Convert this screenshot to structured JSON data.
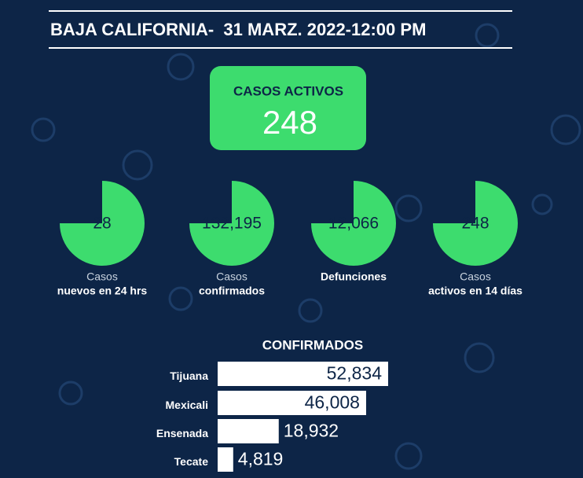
{
  "header": {
    "title": "BAJA CALIFORNIA-  31 MARZ. 2022-12:00 PM"
  },
  "active_cases": {
    "label": "CASOS ACTIVOS",
    "value": "248"
  },
  "stats": [
    {
      "value": "28",
      "line1": "Casos",
      "line2": "nuevos en 24 hrs"
    },
    {
      "value": "132,195",
      "line1": "Casos",
      "line2": "confirmados"
    },
    {
      "value": "12,066",
      "line1": "Defunciones"
    },
    {
      "value": "248",
      "line1": "Casos",
      "line2": "activos en 14 días"
    }
  ],
  "confirmed": {
    "title": "CONFIRMADOS",
    "categories": [
      "Tijuana",
      "Mexicali",
      "Ensenada",
      "Tecate"
    ],
    "values": [
      52834,
      46008,
      18932,
      4819
    ],
    "value_labels": [
      "52,834",
      "46,008",
      "18,932",
      "4,819"
    ]
  }
}
